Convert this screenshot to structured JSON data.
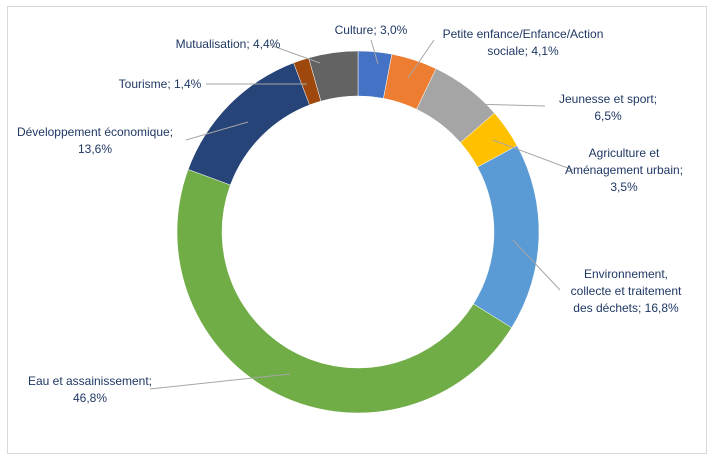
{
  "chart_data": {
    "type": "pie",
    "variant": "doughnut",
    "legend": "none",
    "slices": [
      {
        "label": "Culture",
        "value": 3.0,
        "value_text": "3,0%",
        "color": "#4472c4"
      },
      {
        "label": "Petite enfance/Enfance/Action sociale",
        "value": 4.1,
        "value_text": "4,1%",
        "color": "#ed7d31"
      },
      {
        "label": "Jeunesse et sport",
        "value": 6.5,
        "value_text": "6,5%",
        "color": "#a5a5a5"
      },
      {
        "label": "Agriculture et Aménagement urbain",
        "value": 3.5,
        "value_text": "3,5%",
        "color": "#ffc000"
      },
      {
        "label": "Environnement, collecte et traitement des déchets",
        "value": 16.8,
        "value_text": "16,8%",
        "color": "#5b9bd5"
      },
      {
        "label": "Eau et assainissement",
        "value": 46.8,
        "value_text": "46,8%",
        "color": "#70ad47"
      },
      {
        "label": "Développement économique",
        "value": 13.6,
        "value_text": "13,6%",
        "color": "#264478"
      },
      {
        "label": "Tourisme",
        "value": 1.4,
        "value_text": "1,4%",
        "color": "#9e480e"
      },
      {
        "label": "Mutualisation",
        "value": 4.4,
        "value_text": "4,4%",
        "color": "#636363"
      }
    ]
  }
}
